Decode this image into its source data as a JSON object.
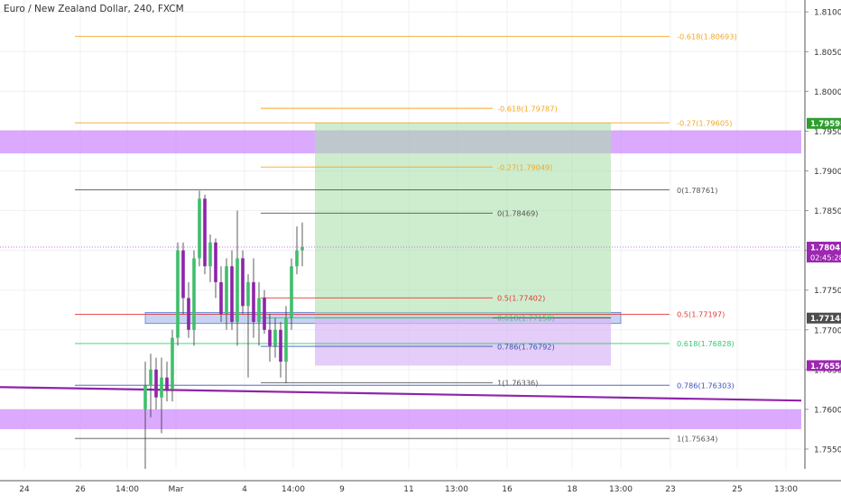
{
  "header": {
    "symbol_title": "Euro / New Zealand Dollar, 240, FXCM"
  },
  "colors": {
    "background": "#ffffff",
    "grid": "#eef0f3",
    "up": "#26a69a",
    "up_green": "#3fbf6b",
    "down": "#8e24aa",
    "purple_zone": "#c77dff",
    "blue_zone": "#8fa8e6",
    "profit_zone": "#a5dea5",
    "loss_zone": "#d9b8f5",
    "fib_orange": "#f5a623",
    "fib_red": "#e53935",
    "fib_green": "#2ecc71",
    "fib_blue": "#3f51b5",
    "fib_gray": "#555555",
    "trendline": "#8e24aa",
    "price_line": "#b04ac7"
  },
  "chart_data": {
    "type": "candlestick",
    "y_axis": {
      "min": 1.7525,
      "max": 1.8115,
      "ticks": [
        "1.81000",
        "1.80500",
        "1.80000",
        "1.79500",
        "1.79000",
        "1.78500",
        "1.78000",
        "1.77500",
        "1.77000",
        "1.76500",
        "1.76000",
        "1.75500"
      ]
    },
    "x_axis": {
      "ticks": [
        "24",
        "26",
        "14:00",
        "Mar",
        "4",
        "14:00",
        "9",
        "11",
        "13:00",
        "16",
        "18",
        "13:00",
        "23",
        "25",
        "13:00"
      ]
    },
    "price_labels": [
      {
        "text": "1.79598",
        "value": 1.79598,
        "color": "#2e9e2e"
      },
      {
        "text": "1.78041",
        "value": 1.78041,
        "color": "#9c27b0",
        "timer": "02:45:28"
      },
      {
        "text": "1.77148",
        "value": 1.77148,
        "color": "#4d4d4d"
      },
      {
        "text": "1.76550",
        "value": 1.7655,
        "color": "#9c27b0"
      }
    ],
    "zones": [
      {
        "name": "supply-zone-upper",
        "y_top": 1.7951,
        "y_bottom": 1.7922,
        "color": "purple"
      },
      {
        "name": "demand-zone-lower",
        "y_top": 1.76,
        "y_bottom": 1.7575,
        "color": "purple"
      },
      {
        "name": "support-zone-blue",
        "y_top": 1.7722,
        "y_bottom": 1.7708,
        "color": "blue"
      }
    ],
    "position_tool": {
      "entry": 1.7715,
      "target": 1.796,
      "stop": 1.7655
    },
    "fib_levels": [
      {
        "label": "-0.618(1.80693)",
        "value": 1.80693,
        "color": "orange",
        "group": "wide"
      },
      {
        "label": "-0.27(1.79605)",
        "value": 1.79605,
        "color": "orange",
        "group": "wide"
      },
      {
        "label": "0(1.78761)",
        "value": 1.78761,
        "color": "gray",
        "group": "wide"
      },
      {
        "label": "0.5(1.77197)",
        "value": 1.77197,
        "color": "red",
        "group": "wide"
      },
      {
        "label": "0.618(1.76828)",
        "value": 1.76828,
        "color": "green",
        "group": "wide"
      },
      {
        "label": "0.786(1.76303)",
        "value": 1.76303,
        "color": "blue",
        "group": "wide"
      },
      {
        "label": "1(1.75634)",
        "value": 1.75634,
        "color": "gray",
        "group": "wide"
      },
      {
        "label": "-0.618(1.79787)",
        "value": 1.79787,
        "color": "orange",
        "group": "narrow"
      },
      {
        "label": "-0.27(1.79049)",
        "value": 1.79049,
        "color": "orange",
        "group": "narrow"
      },
      {
        "label": "0(1.78469)",
        "value": 1.78469,
        "color": "gray",
        "group": "narrow"
      },
      {
        "label": "0.5(1.77402)",
        "value": 1.77402,
        "color": "red",
        "group": "narrow"
      },
      {
        "label": "0.618(1.77150)",
        "value": 1.7715,
        "color": "green",
        "group": "narrow"
      },
      {
        "label": "0.786(1.76792)",
        "value": 1.76792,
        "color": "blue",
        "group": "narrow"
      },
      {
        "label": "1(1.76336)",
        "value": 1.76336,
        "color": "gray",
        "group": "narrow"
      }
    ],
    "trendline": {
      "start": 1.7628,
      "end": 1.7611
    },
    "candles": [
      {
        "o": 1.76,
        "h": 1.766,
        "l": 1.7525,
        "c": 1.763,
        "dir": "up"
      },
      {
        "o": 1.763,
        "h": 1.767,
        "l": 1.759,
        "c": 1.765,
        "dir": "up"
      },
      {
        "o": 1.765,
        "h": 1.7665,
        "l": 1.76,
        "c": 1.7615,
        "dir": "down"
      },
      {
        "o": 1.7615,
        "h": 1.7665,
        "l": 1.757,
        "c": 1.764,
        "dir": "up"
      },
      {
        "o": 1.764,
        "h": 1.766,
        "l": 1.761,
        "c": 1.7625,
        "dir": "down"
      },
      {
        "o": 1.7625,
        "h": 1.77,
        "l": 1.761,
        "c": 1.769,
        "dir": "up"
      },
      {
        "o": 1.769,
        "h": 1.781,
        "l": 1.768,
        "c": 1.78,
        "dir": "up"
      },
      {
        "o": 1.78,
        "h": 1.781,
        "l": 1.772,
        "c": 1.774,
        "dir": "down"
      },
      {
        "o": 1.774,
        "h": 1.776,
        "l": 1.769,
        "c": 1.77,
        "dir": "down"
      },
      {
        "o": 1.77,
        "h": 1.78,
        "l": 1.768,
        "c": 1.779,
        "dir": "up"
      },
      {
        "o": 1.779,
        "h": 1.7875,
        "l": 1.778,
        "c": 1.7865,
        "dir": "up"
      },
      {
        "o": 1.7865,
        "h": 1.787,
        "l": 1.777,
        "c": 1.778,
        "dir": "down"
      },
      {
        "o": 1.778,
        "h": 1.782,
        "l": 1.776,
        "c": 1.781,
        "dir": "up"
      },
      {
        "o": 1.781,
        "h": 1.7815,
        "l": 1.774,
        "c": 1.776,
        "dir": "down"
      },
      {
        "o": 1.776,
        "h": 1.778,
        "l": 1.771,
        "c": 1.772,
        "dir": "down"
      },
      {
        "o": 1.772,
        "h": 1.779,
        "l": 1.77,
        "c": 1.778,
        "dir": "up"
      },
      {
        "o": 1.778,
        "h": 1.78,
        "l": 1.77,
        "c": 1.771,
        "dir": "down"
      },
      {
        "o": 1.771,
        "h": 1.785,
        "l": 1.768,
        "c": 1.779,
        "dir": "up"
      },
      {
        "o": 1.779,
        "h": 1.78,
        "l": 1.772,
        "c": 1.773,
        "dir": "down"
      },
      {
        "o": 1.773,
        "h": 1.777,
        "l": 1.764,
        "c": 1.776,
        "dir": "up"
      },
      {
        "o": 1.776,
        "h": 1.779,
        "l": 1.769,
        "c": 1.771,
        "dir": "down"
      },
      {
        "o": 1.771,
        "h": 1.776,
        "l": 1.768,
        "c": 1.774,
        "dir": "up"
      },
      {
        "o": 1.774,
        "h": 1.775,
        "l": 1.7695,
        "c": 1.77,
        "dir": "down"
      },
      {
        "o": 1.77,
        "h": 1.772,
        "l": 1.766,
        "c": 1.768,
        "dir": "down"
      },
      {
        "o": 1.768,
        "h": 1.7715,
        "l": 1.7665,
        "c": 1.77,
        "dir": "up"
      },
      {
        "o": 1.77,
        "h": 1.771,
        "l": 1.764,
        "c": 1.766,
        "dir": "down"
      },
      {
        "o": 1.766,
        "h": 1.773,
        "l": 1.7633,
        "c": 1.7715,
        "dir": "up"
      },
      {
        "o": 1.7715,
        "h": 1.779,
        "l": 1.77,
        "c": 1.778,
        "dir": "up"
      },
      {
        "o": 1.778,
        "h": 1.783,
        "l": 1.777,
        "c": 1.78,
        "dir": "up"
      },
      {
        "o": 1.78,
        "h": 1.7835,
        "l": 1.778,
        "c": 1.7804,
        "dir": "up"
      }
    ]
  }
}
